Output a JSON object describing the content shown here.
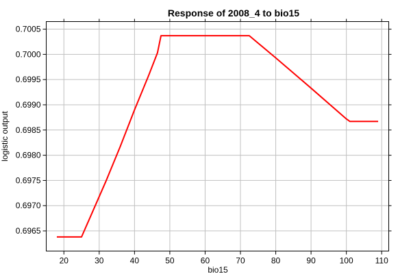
{
  "chart_data": {
    "type": "line",
    "title": "Response of 2008_4 to bio15",
    "xlabel": "bio15",
    "ylabel": "logistic output",
    "xlim": [
      15,
      112
    ],
    "ylim": [
      0.6961,
      0.70065
    ],
    "xticks": [
      20,
      30,
      40,
      50,
      60,
      70,
      80,
      90,
      100,
      110
    ],
    "yticks": [
      0.6965,
      0.697,
      0.6975,
      0.698,
      0.6985,
      0.699,
      0.6995,
      0.7,
      0.7005
    ],
    "ytick_labels": [
      "0.6965",
      "0.6970",
      "0.6975",
      "0.6980",
      "0.6985",
      "0.6990",
      "0.6995",
      "0.7000",
      "0.7005"
    ],
    "grid": true,
    "series": [
      {
        "color": "#ff0000",
        "x": [
          18,
          25,
          28,
          32,
          36,
          40,
          44,
          46.5,
          47.5,
          72.5,
          80,
          90,
          100,
          101,
          109
        ],
        "y": [
          0.69638,
          0.69638,
          0.69686,
          0.6975,
          0.69818,
          0.6989,
          0.69958,
          0.70003,
          0.70037,
          0.70037,
          0.69993,
          0.69933,
          0.69872,
          0.69867,
          0.69867
        ]
      }
    ]
  }
}
